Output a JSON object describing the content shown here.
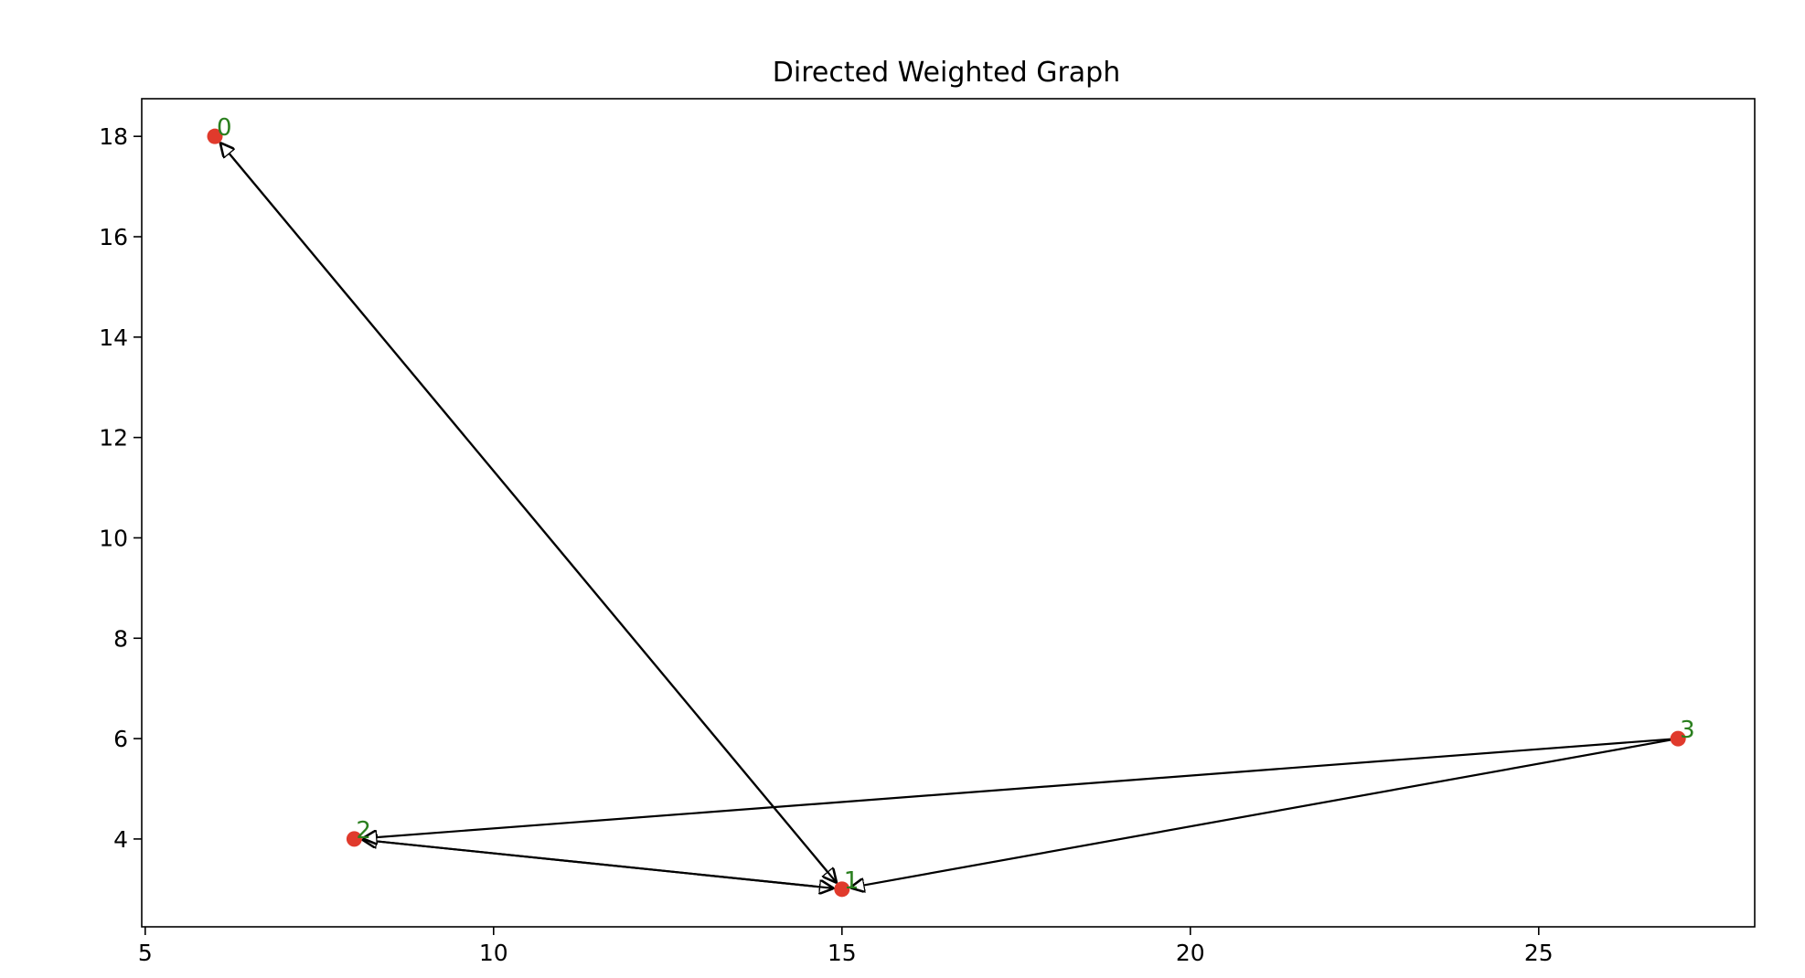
{
  "title": "Directed Weighted Graph",
  "colors": {
    "node": "#e03a2c",
    "label": "#2a7f1e",
    "edge": "#000000",
    "axes": "#000000"
  },
  "axes": {
    "xlim": [
      4.95,
      28.1
    ],
    "ylim": [
      2.25,
      18.75
    ],
    "xticks": [
      5,
      10,
      15,
      20,
      25
    ],
    "yticks": [
      4,
      6,
      8,
      10,
      12,
      14,
      16,
      18
    ]
  },
  "nodes": [
    {
      "id": "0",
      "label": "0",
      "x": 6,
      "y": 18
    },
    {
      "id": "1",
      "label": "1",
      "x": 15,
      "y": 3
    },
    {
      "id": "2",
      "label": "2",
      "x": 8,
      "y": 4
    },
    {
      "id": "3",
      "label": "3",
      "x": 27,
      "y": 6
    }
  ],
  "edges": [
    {
      "from": "0",
      "to": "1"
    },
    {
      "from": "1",
      "to": "0"
    },
    {
      "from": "2",
      "to": "1"
    },
    {
      "from": "1",
      "to": "2"
    },
    {
      "from": "3",
      "to": "1"
    },
    {
      "from": "3",
      "to": "2"
    }
  ]
}
